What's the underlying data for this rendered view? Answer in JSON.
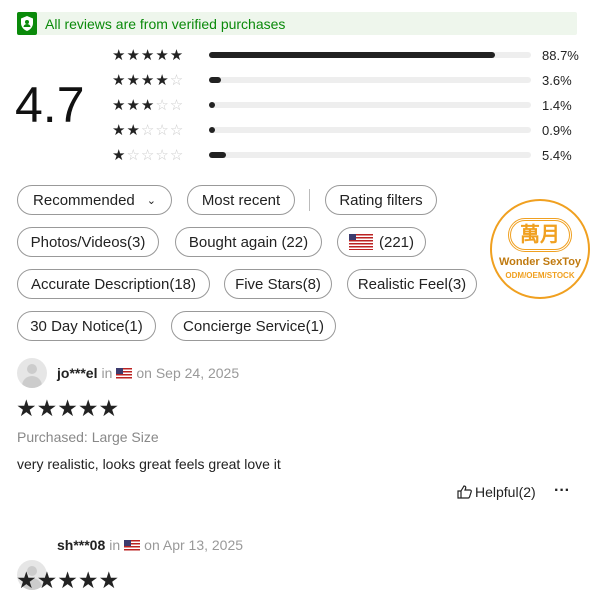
{
  "banner": {
    "text": "All reviews are from verified purchases",
    "icon": "shield-user-icon",
    "color": "#0a8a0a"
  },
  "summary": {
    "rating": "4.7",
    "distribution": [
      {
        "stars": 5,
        "percent": 88.7,
        "label": "88.7%"
      },
      {
        "stars": 4,
        "percent": 3.6,
        "label": "3.6%"
      },
      {
        "stars": 3,
        "percent": 1.4,
        "label": "1.4%"
      },
      {
        "stars": 2,
        "percent": 0.9,
        "label": "0.9%"
      },
      {
        "stars": 1,
        "percent": 5.4,
        "label": "5.4%"
      }
    ]
  },
  "filters": {
    "sort": "Recommended",
    "most_recent": "Most recent",
    "rating_filters": "Rating filters",
    "chips": [
      "Photos/Videos(3)",
      "Bought again (22)",
      "(221)",
      "Accurate Description(18)",
      "Five Stars(8)",
      "Realistic Feel(3)",
      "30 Day Notice(1)",
      "Concierge Service(1)"
    ]
  },
  "logo": {
    "text": "Wonder SexToy",
    "subtext": "ODM/OEM/STOCK",
    "color": "#f0a020"
  },
  "reviews": [
    {
      "user": "jo***el",
      "in": "in",
      "date": "on Sep 24, 2025",
      "stars": 5,
      "purchased": "Purchased: Large Size",
      "text": "very realistic, looks great feels great love it",
      "helpful": "Helpful(2)",
      "more": "···"
    },
    {
      "user": "sh***08",
      "in": "in",
      "date": "on Apr 13, 2025",
      "stars": 5
    }
  ]
}
